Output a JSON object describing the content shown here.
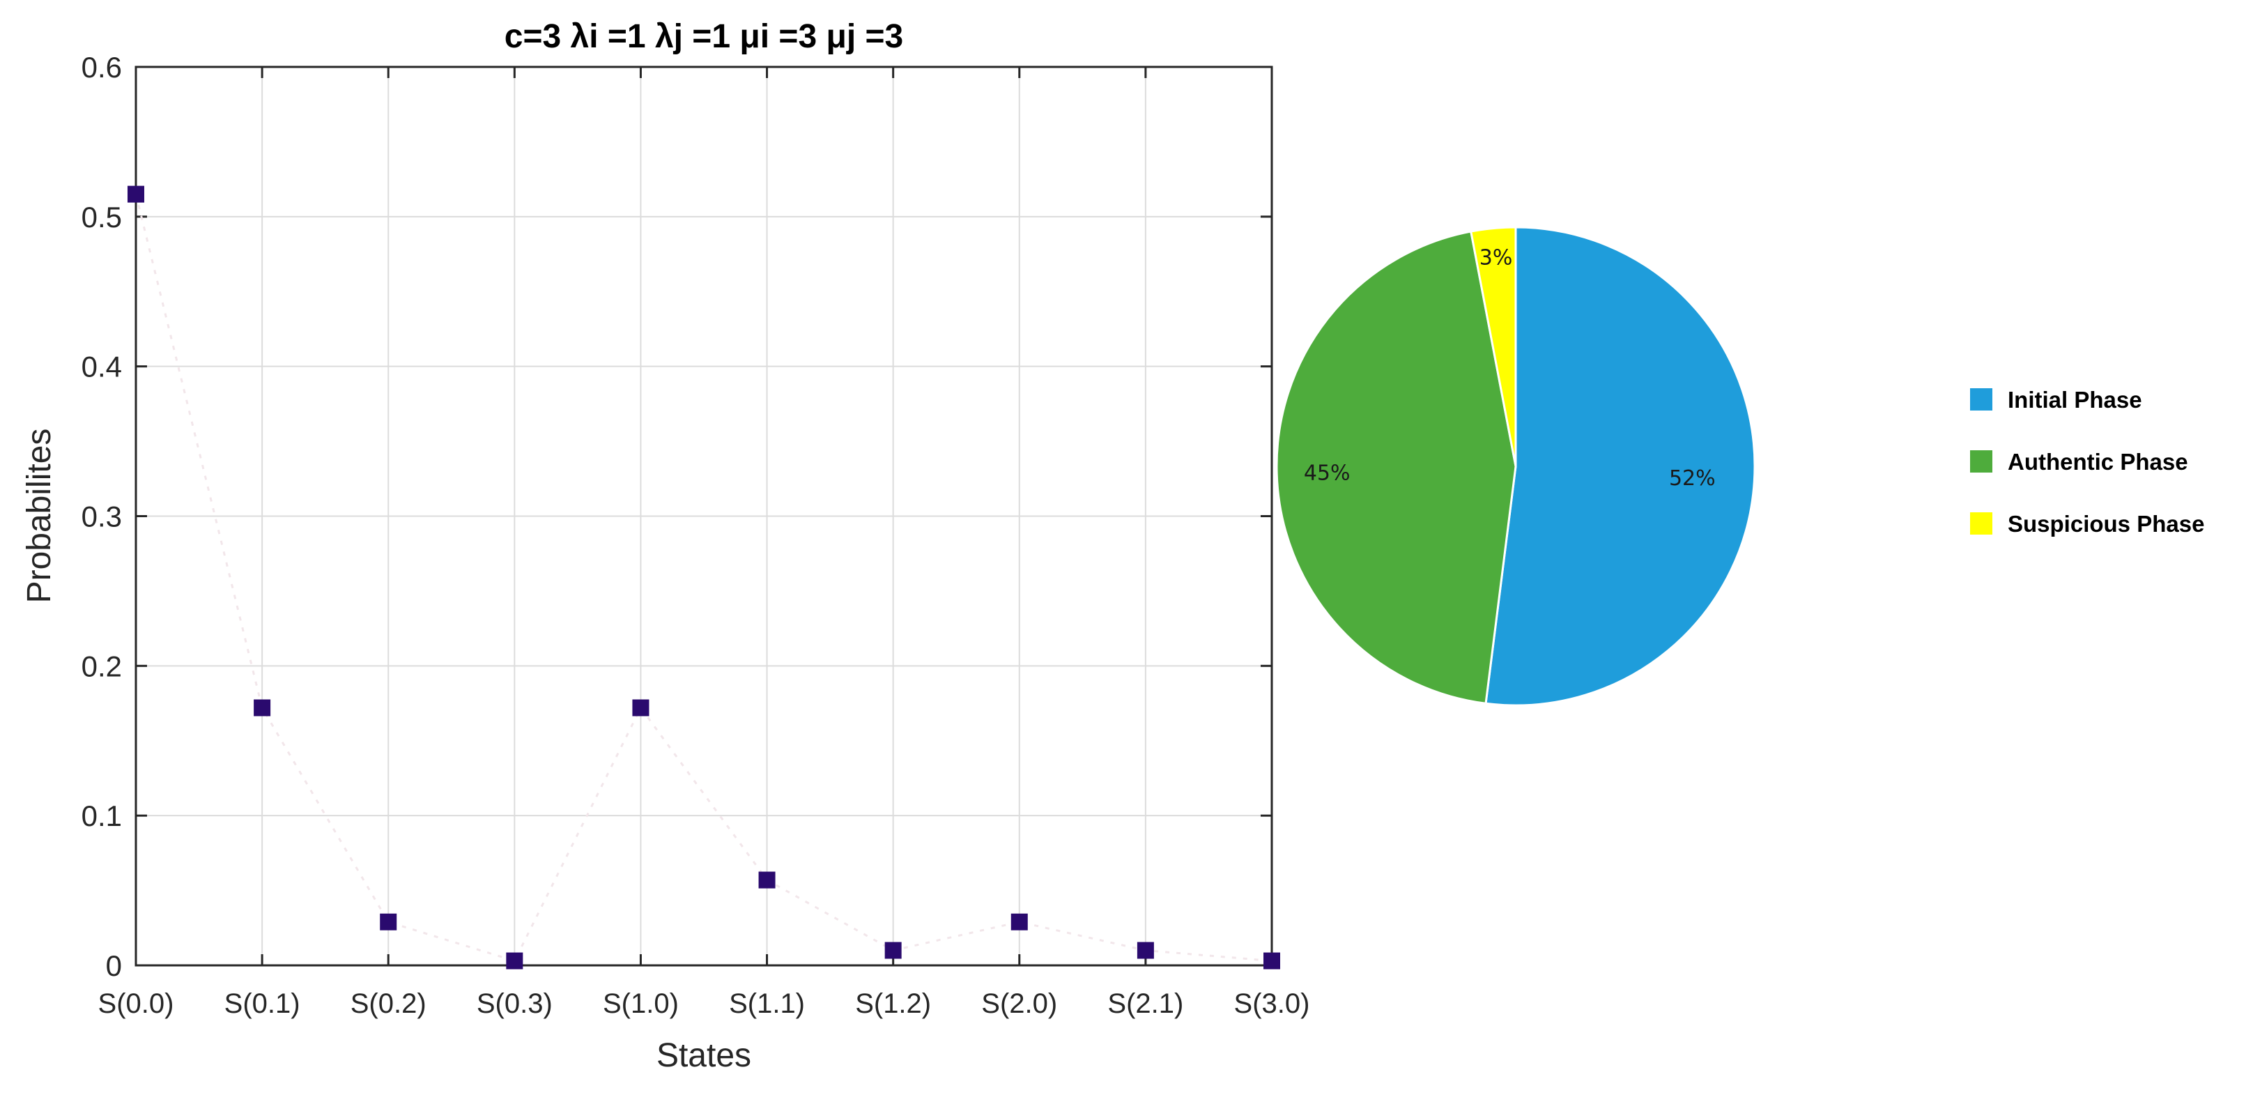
{
  "chart_data": [
    {
      "type": "scatter",
      "title": "c=3  λi  =1  λj  =1  μi  =3  μj   =3",
      "xlabel": "States",
      "ylabel": "Probabilites",
      "categories": [
        "S(0.0)",
        "S(0.1)",
        "S(0.2)",
        "S(0.3)",
        "S(1.0)",
        "S(1.1)",
        "S(1.2)",
        "S(2.0)",
        "S(2.1)",
        "S(3.0)"
      ],
      "values": [
        0.515,
        0.172,
        0.029,
        0.003,
        0.172,
        0.057,
        0.01,
        0.029,
        0.01,
        0.003
      ],
      "ylim": [
        0,
        0.6
      ],
      "yticks": [
        "0",
        "0.1",
        "0.2",
        "0.3",
        "0.4",
        "0.5",
        "0.6"
      ],
      "grid": true,
      "marker": "square",
      "marker_color": "#2a0a6e"
    },
    {
      "type": "pie",
      "labels": [
        "Initial Phase",
        "Authentic Phase",
        "Suspicious Phase"
      ],
      "values": [
        52,
        45,
        3
      ],
      "value_labels": [
        "52%",
        "45%",
        "3%"
      ],
      "colors": [
        "#1f9ddb",
        "#4eac3c",
        "#ffff00"
      ],
      "legend_placement": "right"
    }
  ]
}
